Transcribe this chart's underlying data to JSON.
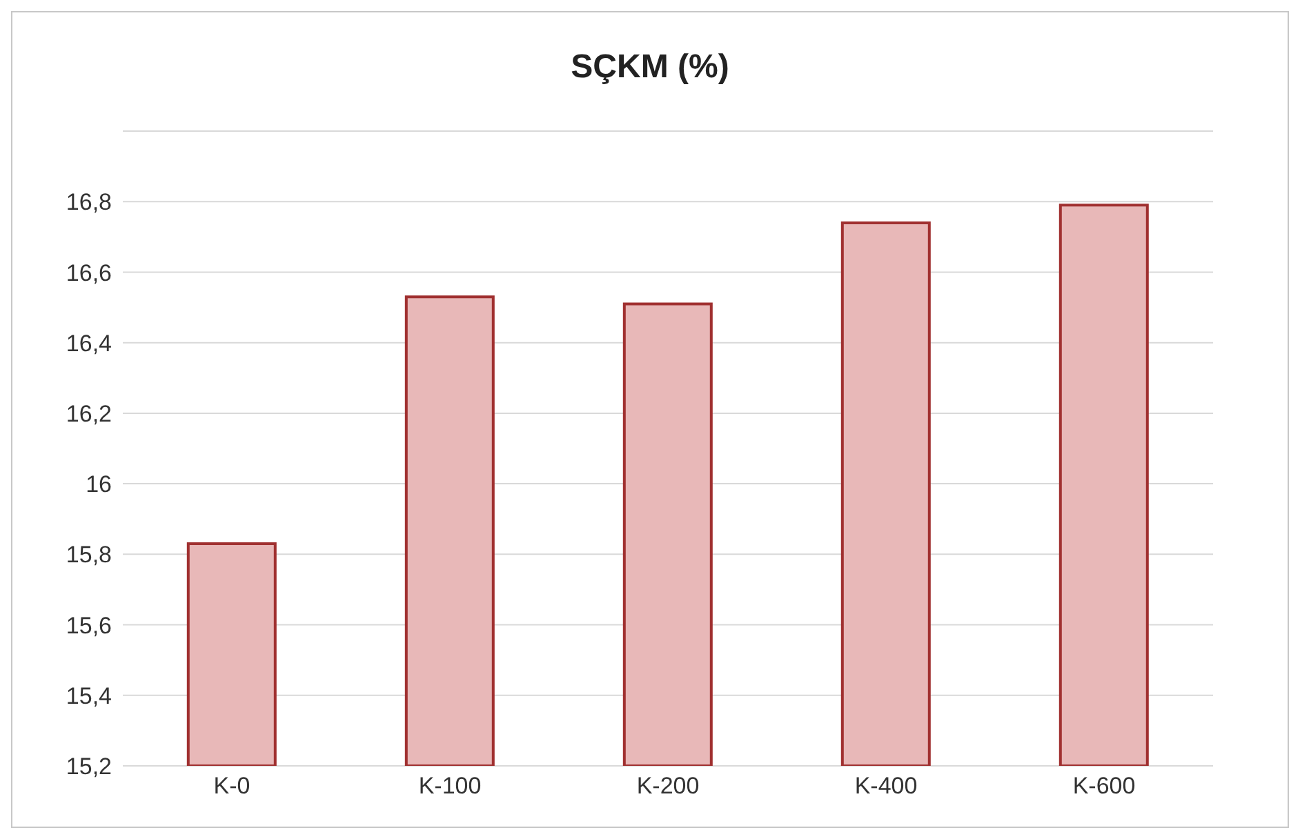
{
  "chart_data": {
    "type": "bar",
    "title": "SÇKM (%)",
    "categories": [
      "K-0",
      "K-100",
      "K-200",
      "K-400",
      "K-600"
    ],
    "values": [
      15.83,
      16.53,
      16.51,
      16.74,
      16.79
    ],
    "color": "#e8b8b8",
    "ylim": [
      15.2,
      17
    ],
    "yticks": [
      {
        "value": 15.2,
        "label": "15,2"
      },
      {
        "value": 15.4,
        "label": "15,4"
      },
      {
        "value": 15.6,
        "label": "15,6"
      },
      {
        "value": 15.8,
        "label": "15,8"
      },
      16,
      {
        "value": 16.2,
        "label": "16,2"
      },
      {
        "value": 16.4,
        "label": "16,4"
      },
      {
        "value": 16.6,
        "label": "16,6"
      },
      {
        "value": 16.8,
        "label": "16,8"
      }
    ],
    "grid": "y"
  }
}
